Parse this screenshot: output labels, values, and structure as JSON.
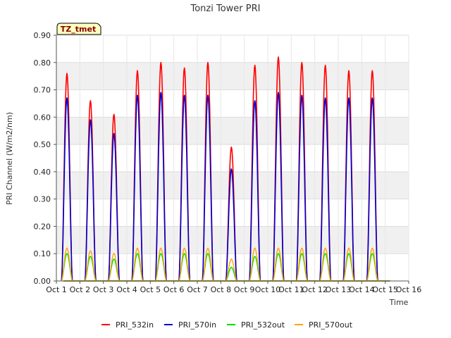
{
  "chart_data": {
    "type": "line",
    "title": "Tonzi Tower PRI",
    "xlabel": "Time",
    "ylabel": "PRI Channel (W/m2/nm)",
    "ylim": [
      0,
      0.9
    ],
    "xlim": [
      0,
      15
    ],
    "yticks": [
      0,
      0.1,
      0.2,
      0.3,
      0.4,
      0.5,
      0.6,
      0.7,
      0.8,
      0.9
    ],
    "ytick_labels": [
      "0.00",
      "0.10",
      "0.20",
      "0.30",
      "0.40",
      "0.50",
      "0.60",
      "0.70",
      "0.80",
      "0.90"
    ],
    "xtick_labels": [
      "Oct 1",
      "Oct 2",
      "Oct 3",
      "Oct 4",
      "Oct 5",
      "Oct 6",
      "Oct 7",
      "Oct 8",
      "Oct 9",
      "Oct 10",
      "Oct 11",
      "Oct 12",
      "Oct 13",
      "Oct 14",
      "Oct 15",
      "Oct 16"
    ],
    "site_badge": "TZ_tmet",
    "x_note": "x = days after Oct 1 00:00; daily peaks near local noon",
    "series": [
      {
        "name": "PRI_532in",
        "color": "#ff0000",
        "peak_x": [
          0.45,
          1.45,
          2.45,
          3.45,
          4.45,
          5.45,
          6.45,
          7.45,
          8.45,
          9.45,
          10.45,
          11.45,
          12.45,
          13.45
        ],
        "peak_y": [
          0.76,
          0.66,
          0.61,
          0.77,
          0.8,
          0.78,
          0.8,
          0.49,
          0.79,
          0.82,
          0.8,
          0.79,
          0.77,
          0.77
        ]
      },
      {
        "name": "PRI_570in",
        "color": "#0000cc",
        "peak_x": [
          0.45,
          1.45,
          2.45,
          3.45,
          4.45,
          5.45,
          6.45,
          7.45,
          8.45,
          9.45,
          10.45,
          11.45,
          12.45,
          13.45
        ],
        "peak_y": [
          0.67,
          0.59,
          0.54,
          0.68,
          0.69,
          0.68,
          0.68,
          0.41,
          0.66,
          0.69,
          0.68,
          0.67,
          0.67,
          0.67
        ]
      },
      {
        "name": "PRI_532out",
        "color": "#00dd00",
        "peak_x": [
          0.45,
          1.45,
          2.45,
          3.45,
          4.45,
          5.45,
          6.45,
          7.45,
          8.45,
          9.45,
          10.45,
          11.45,
          12.45,
          13.45
        ],
        "peak_y": [
          0.1,
          0.09,
          0.08,
          0.1,
          0.1,
          0.1,
          0.1,
          0.05,
          0.09,
          0.1,
          0.1,
          0.1,
          0.1,
          0.1
        ]
      },
      {
        "name": "PRI_570out",
        "color": "#ffa500",
        "peak_x": [
          0.45,
          1.45,
          2.45,
          3.45,
          4.45,
          5.45,
          6.45,
          7.45,
          8.45,
          9.45,
          10.45,
          11.45,
          12.45,
          13.45
        ],
        "peak_y": [
          0.12,
          0.11,
          0.1,
          0.12,
          0.12,
          0.12,
          0.12,
          0.08,
          0.12,
          0.12,
          0.12,
          0.12,
          0.12,
          0.12
        ]
      }
    ],
    "legend_position": "bottom-center"
  }
}
